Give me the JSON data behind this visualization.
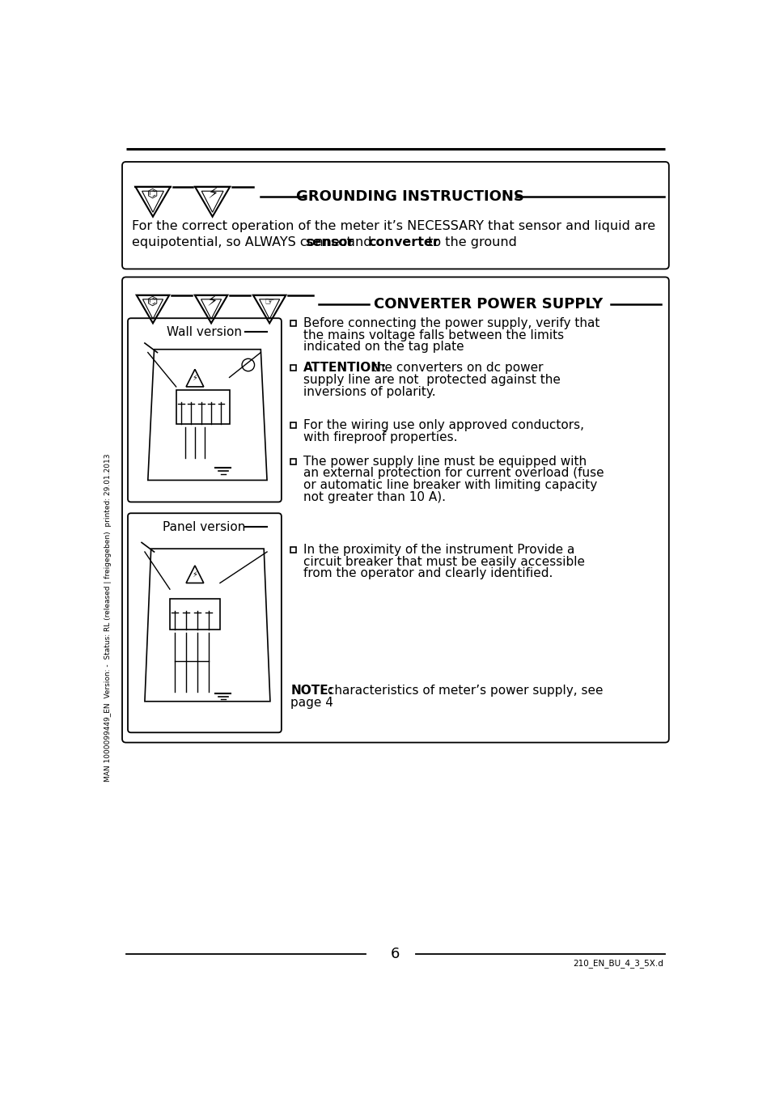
{
  "bg_color": "#ffffff",
  "page_number": "6",
  "footer_right": "210_EN_BU_4_3_5X.d",
  "sidebar_text": "MAN 1000099449_EN  Version: -  Status: RL (released | freigegeben)  printed: 29.01.2013",
  "grounding_title": "GROUNDING INSTRUCTIONS",
  "grounding_line1": "For the correct operation of the meter it’s NECESSARY that sensor and liquid are",
  "grounding_line2_pre": "equipotential, so ALWAYS connect ",
  "grounding_line2_bold1": "sensor",
  "grounding_line2_mid": " and ",
  "grounding_line2_bold2": "converter",
  "grounding_line2_post": " to the ground",
  "converter_title": "CONVERTER POWER SUPPLY",
  "wall_label": "Wall version",
  "panel_label": "Panel version",
  "bullet1": "Before connecting the power supply, verify that\nthe mains voltage falls between the limits\nindicated on the tag plate",
  "bullet2_bold": "ATTENTION:",
  "bullet2_rest": " the converters on dc power\nsupply line are not  protected against the\ninversions of polarity.",
  "bullet3": "For the wiring use only approved conductors,\nwith fireproof properties.",
  "bullet4": "The power supply line must be equipped with\nan external protection for current overload (fuse\nor automatic line breaker with limiting capacity\nnot greater than 10 A).",
  "bullet5": "In the proximity of the instrument Provide a\ncircuit breaker that must be easily accessible\nfrom the operator and clearly identified.",
  "note_bold": "NOTE:",
  "note_rest": " characteristics of meter’s power supply, see",
  "note_line2": "page 4"
}
